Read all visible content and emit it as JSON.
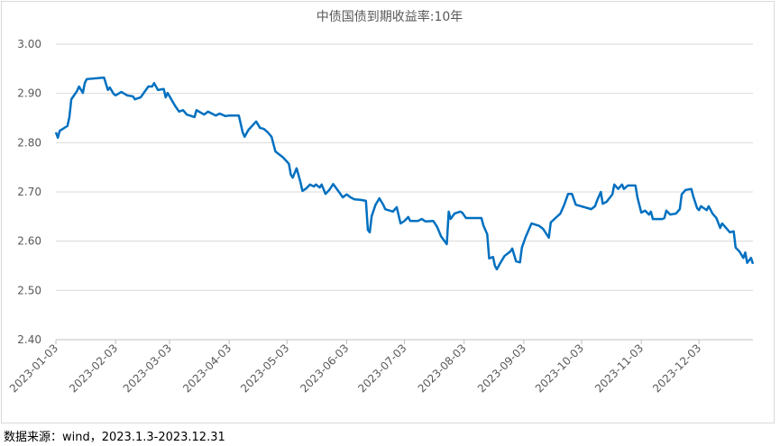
{
  "chart_data": {
    "type": "line",
    "title": "中债国债到期收益率:10年",
    "source": "数据来源：wind，2023.1.3-2023.12.31",
    "xlim": [
      "2023-01-03",
      "2023-12-31"
    ],
    "xticks": [
      "2023-01-03",
      "2023-02-03",
      "2023-03-03",
      "2023-04-03",
      "2023-05-03",
      "2023-06-03",
      "2023-07-03",
      "2023-08-03",
      "2023-09-03",
      "2023-10-03",
      "2023-11-03",
      "2023-12-03"
    ],
    "ylim": [
      2.4,
      3.0
    ],
    "yticks": [
      {
        "value": 2.4,
        "label": "2.40"
      },
      {
        "value": 2.5,
        "label": "2.50"
      },
      {
        "value": 2.6,
        "label": "2.60"
      },
      {
        "value": 2.7,
        "label": "2.70"
      },
      {
        "value": 2.8,
        "label": "2.80"
      },
      {
        "value": 2.9,
        "label": "2.90"
      },
      {
        "value": 3.0,
        "label": "3.00"
      }
    ],
    "grid": true,
    "x": [
      "2023-01-03",
      "2023-01-04",
      "2023-01-05",
      "2023-01-09",
      "2023-01-10",
      "2023-01-11",
      "2023-01-14",
      "2023-01-15",
      "2023-01-17",
      "2023-01-18",
      "2023-01-19",
      "2023-01-28",
      "2023-01-30",
      "2023-01-31",
      "2023-02-02",
      "2023-02-03",
      "2023-02-06",
      "2023-02-09",
      "2023-02-12",
      "2023-02-13",
      "2023-02-16",
      "2023-02-20",
      "2023-02-22",
      "2023-02-23",
      "2023-02-25",
      "2023-02-28",
      "2023-03-01",
      "2023-03-02",
      "2023-03-06",
      "2023-03-08",
      "2023-03-10",
      "2023-03-12",
      "2023-03-16",
      "2023-03-17",
      "2023-03-21",
      "2023-03-23",
      "2023-03-27",
      "2023-03-29",
      "2023-04-01",
      "2023-04-03",
      "2023-04-08",
      "2023-04-10",
      "2023-04-11",
      "2023-04-13",
      "2023-04-17",
      "2023-04-19",
      "2023-04-21",
      "2023-04-23",
      "2023-04-25",
      "2023-04-27",
      "2023-05-01",
      "2023-05-04",
      "2023-05-05",
      "2023-05-06",
      "2023-05-08",
      "2023-05-10",
      "2023-05-11",
      "2023-05-13",
      "2023-05-15",
      "2023-05-17",
      "2023-05-18",
      "2023-05-20",
      "2023-05-21",
      "2023-05-23",
      "2023-05-25",
      "2023-05-27",
      "2023-05-30",
      "2023-06-01",
      "2023-06-03",
      "2023-06-05",
      "2023-06-07",
      "2023-06-10",
      "2023-06-13",
      "2023-06-14",
      "2023-06-15",
      "2023-06-16",
      "2023-06-18",
      "2023-06-20",
      "2023-06-22",
      "2023-06-23",
      "2023-06-27",
      "2023-06-29",
      "2023-07-01",
      "2023-07-03",
      "2023-07-05",
      "2023-07-06",
      "2023-07-10",
      "2023-07-12",
      "2023-07-14",
      "2023-07-18",
      "2023-07-20",
      "2023-07-22",
      "2023-07-25",
      "2023-07-26",
      "2023-07-27",
      "2023-07-29",
      "2023-08-01",
      "2023-08-02",
      "2023-08-04",
      "2023-08-10",
      "2023-08-12",
      "2023-08-13",
      "2023-08-15",
      "2023-08-16",
      "2023-08-18",
      "2023-08-19",
      "2023-08-20",
      "2023-08-22",
      "2023-08-24",
      "2023-08-27",
      "2023-08-28",
      "2023-08-30",
      "2023-09-01",
      "2023-09-02",
      "2023-09-04",
      "2023-09-05",
      "2023-09-07",
      "2023-09-11",
      "2023-09-13",
      "2023-09-16",
      "2023-09-17",
      "2023-09-20",
      "2023-09-22",
      "2023-09-24",
      "2023-09-26",
      "2023-09-28",
      "2023-09-30",
      "2023-10-08",
      "2023-10-10",
      "2023-10-11",
      "2023-10-13",
      "2023-10-14",
      "2023-10-16",
      "2023-10-19",
      "2023-10-20",
      "2023-10-22",
      "2023-10-24",
      "2023-10-25",
      "2023-10-27",
      "2023-10-31",
      "2023-11-01",
      "2023-11-03",
      "2023-11-05",
      "2023-11-07",
      "2023-11-08",
      "2023-11-09",
      "2023-11-14",
      "2023-11-15",
      "2023-11-16",
      "2023-11-18",
      "2023-11-21",
      "2023-11-23",
      "2023-11-24",
      "2023-11-26",
      "2023-11-29",
      "2023-11-30",
      "2023-12-02",
      "2023-12-03",
      "2023-12-04",
      "2023-12-07",
      "2023-12-08",
      "2023-12-10",
      "2023-12-12",
      "2023-12-14",
      "2023-12-15",
      "2023-12-17",
      "2023-12-19",
      "2023-12-21",
      "2023-12-22",
      "2023-12-24",
      "2023-12-26",
      "2023-12-27",
      "2023-12-28",
      "2023-12-30",
      "2023-12-31"
    ],
    "series": [
      {
        "name": "中债国债到期收益率:10年",
        "color": "#0070c0",
        "values": [
          2.821,
          2.81,
          2.824,
          2.834,
          2.852,
          2.888,
          2.905,
          2.914,
          2.901,
          2.921,
          2.929,
          2.932,
          2.907,
          2.912,
          2.899,
          2.896,
          2.903,
          2.896,
          2.894,
          2.888,
          2.892,
          2.914,
          2.914,
          2.921,
          2.907,
          2.909,
          2.892,
          2.901,
          2.874,
          2.863,
          2.866,
          2.857,
          2.852,
          2.866,
          2.857,
          2.863,
          2.855,
          2.859,
          2.854,
          2.855,
          2.855,
          2.821,
          2.812,
          2.826,
          2.843,
          2.83,
          2.828,
          2.821,
          2.812,
          2.782,
          2.77,
          2.757,
          2.735,
          2.729,
          2.748,
          2.72,
          2.702,
          2.707,
          2.715,
          2.711,
          2.715,
          2.709,
          2.715,
          2.696,
          2.704,
          2.716,
          2.7,
          2.689,
          2.695,
          2.689,
          2.685,
          2.684,
          2.682,
          2.623,
          2.618,
          2.651,
          2.674,
          2.687,
          2.674,
          2.665,
          2.66,
          2.669,
          2.636,
          2.641,
          2.649,
          2.641,
          2.641,
          2.645,
          2.64,
          2.641,
          2.629,
          2.61,
          2.594,
          2.66,
          2.645,
          2.656,
          2.66,
          2.658,
          2.647,
          2.647,
          2.647,
          2.632,
          2.614,
          2.565,
          2.568,
          2.55,
          2.543,
          2.557,
          2.57,
          2.579,
          2.585,
          2.559,
          2.557,
          2.587,
          2.609,
          2.618,
          2.636,
          2.631,
          2.625,
          2.607,
          2.638,
          2.649,
          2.656,
          2.674,
          2.696,
          2.696,
          2.674,
          2.665,
          2.671,
          2.682,
          2.7,
          2.676,
          2.68,
          2.695,
          2.715,
          2.706,
          2.715,
          2.706,
          2.713,
          2.713,
          2.689,
          2.658,
          2.662,
          2.654,
          2.66,
          2.645,
          2.645,
          2.647,
          2.662,
          2.654,
          2.656,
          2.665,
          2.695,
          2.704,
          2.706,
          2.691,
          2.667,
          2.663,
          2.671,
          2.663,
          2.671,
          2.656,
          2.647,
          2.627,
          2.636,
          2.627,
          2.618,
          2.62,
          2.587,
          2.579,
          2.566,
          2.577,
          2.556,
          2.566,
          2.554
        ]
      }
    ]
  }
}
